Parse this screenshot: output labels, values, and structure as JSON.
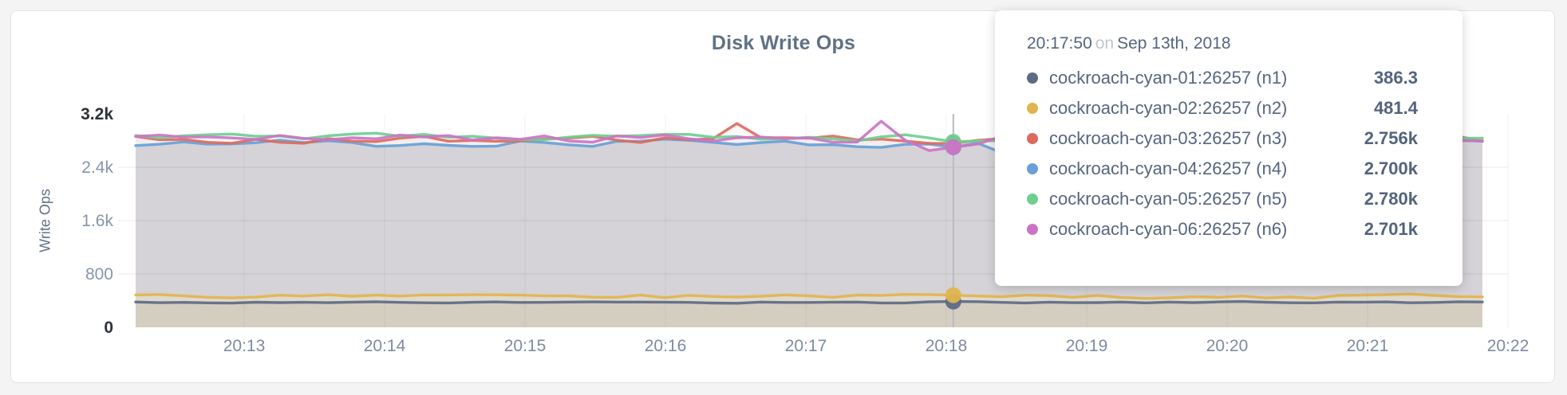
{
  "panel": {
    "title": "Disk Write Ops"
  },
  "tooltip": {
    "time": "20:17:50",
    "conj": "on",
    "date": "Sep 13th, 2018"
  },
  "chart_data": {
    "type": "line",
    "title": "Disk Write Ops",
    "xlabel": "",
    "ylabel": "Write Ops",
    "ylim": [
      0,
      3200
    ],
    "grid": true,
    "legend_position": "tooltip-overlay",
    "x_ticks": [
      "20:13",
      "20:14",
      "20:15",
      "20:16",
      "20:17",
      "20:18",
      "20:19",
      "20:20",
      "20:21",
      "20:22"
    ],
    "y_ticks": [
      {
        "label": "0",
        "value": 0,
        "dark": true
      },
      {
        "label": "800",
        "value": 800,
        "dark": false
      },
      {
        "label": "1.6k",
        "value": 1600,
        "dark": false
      },
      {
        "label": "2.4k",
        "value": 2400,
        "dark": false
      },
      {
        "label": "3.2k",
        "value": 3200,
        "dark": true
      }
    ],
    "hover": {
      "time": "20:17:50",
      "x_tick": "20:18"
    },
    "fills": {
      "cluster": "#e4e4e6",
      "under_n2": "#dfdacd",
      "under_n1": "#d4cec1",
      "hover_line": "#b7bbc2"
    },
    "series": [
      {
        "name": "cockroach-cyan-01:26257 (n1)",
        "color": "#5d6a84",
        "base": 375,
        "noise": 18,
        "hover_value": 386.3,
        "hover_label": "386.3",
        "group": "low"
      },
      {
        "name": "cockroach-cyan-02:26257 (n2)",
        "color": "#e2b44e",
        "base": 465,
        "noise": 42,
        "hover_value": 481.4,
        "hover_label": "481.4",
        "group": "low"
      },
      {
        "name": "cockroach-cyan-03:26257 (n3)",
        "color": "#dc6a5e",
        "base": 2815,
        "noise": 72,
        "hover_value": 2756,
        "hover_label": "2.756k",
        "group": "high",
        "peaks": [
          {
            "dx": -9,
            "v": 3055
          }
        ]
      },
      {
        "name": "cockroach-cyan-04:26257 (n4)",
        "color": "#68a0d8",
        "base": 2762,
        "noise": 82,
        "hover_value": 2700,
        "hover_label": "2.700k",
        "group": "high",
        "peaks": [
          {
            "dx": 2,
            "v": 2620
          }
        ]
      },
      {
        "name": "cockroach-cyan-05:26257 (n5)",
        "color": "#6fce90",
        "base": 2848,
        "noise": 72,
        "hover_value": 2780,
        "hover_label": "2.780k",
        "group": "high"
      },
      {
        "name": "cockroach-cyan-06:26257 (n6)",
        "color": "#cb74c5",
        "base": 2830,
        "noise": 95,
        "hover_value": 2701,
        "hover_label": "2.701k",
        "group": "high",
        "peaks": [
          {
            "dx": -3,
            "v": 3090
          },
          {
            "dx": -1,
            "v": 2650
          }
        ]
      }
    ]
  }
}
